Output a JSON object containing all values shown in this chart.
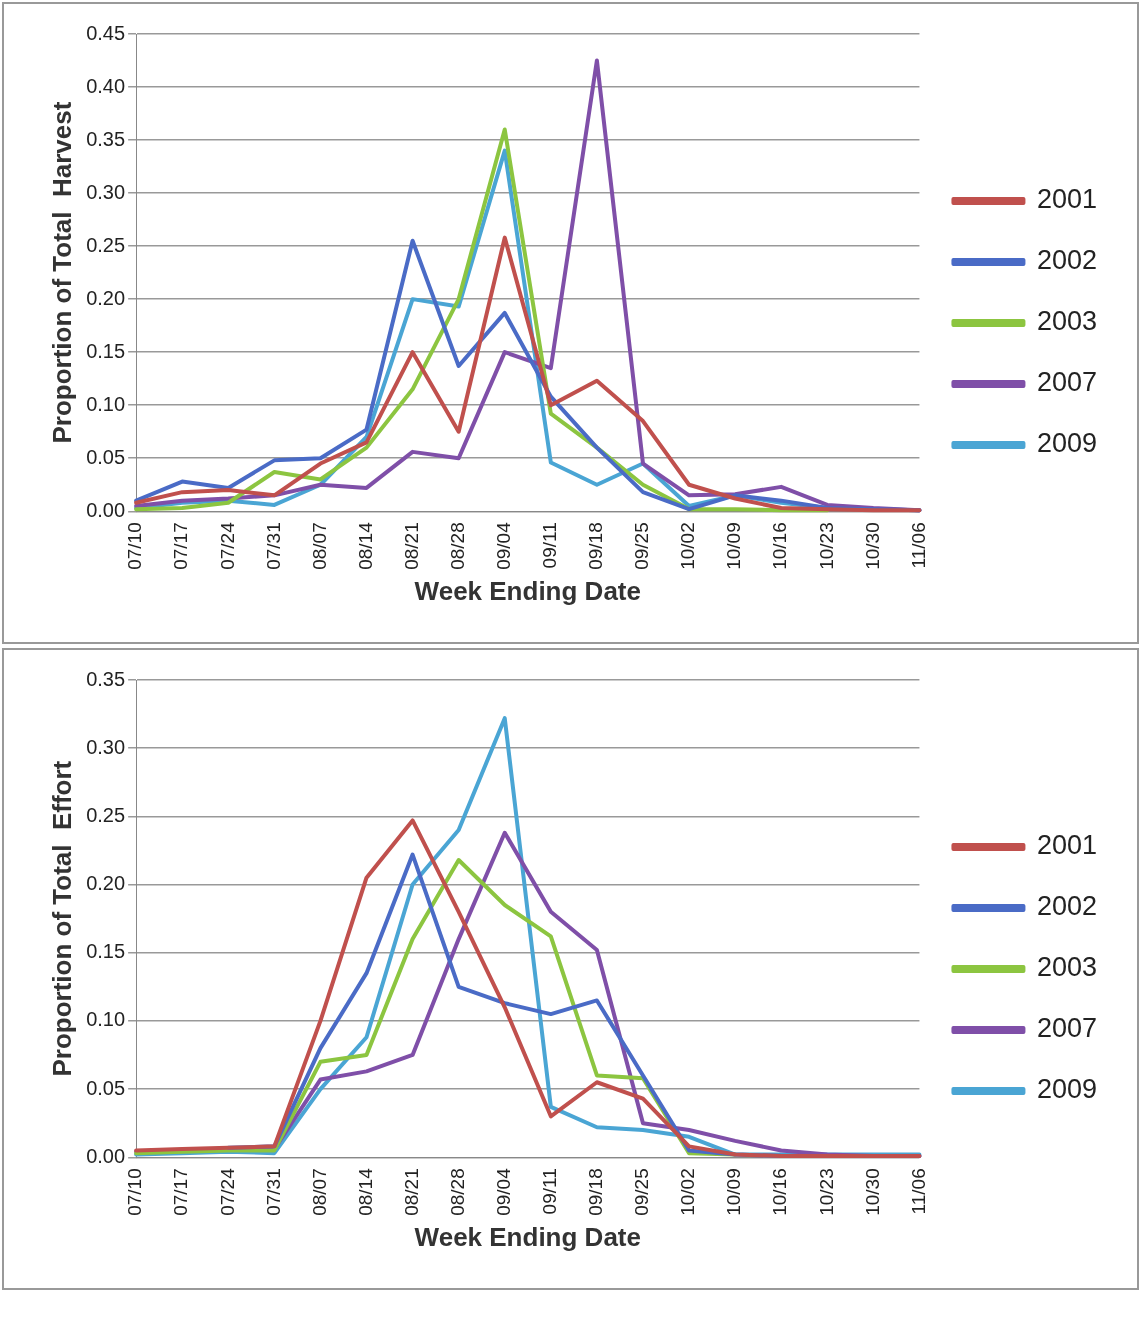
{
  "chart_data": [
    {
      "type": "line",
      "ylabel": "Proportion of Total  Harvest",
      "xlabel": "Week Ending Date",
      "categories": [
        "07/10",
        "07/17",
        "07/24",
        "07/31",
        "08/07",
        "08/14",
        "08/21",
        "08/28",
        "09/04",
        "09/11",
        "09/18",
        "09/25",
        "10/02",
        "10/09",
        "10/16",
        "10/23",
        "10/30",
        "11/06"
      ],
      "series": [
        {
          "name": "2001",
          "color": "#c0504d",
          "values": [
            0.008,
            0.018,
            0.02,
            0.015,
            0.045,
            0.065,
            0.15,
            0.075,
            0.258,
            0.1,
            0.123,
            0.085,
            0.025,
            0.012,
            0.003,
            0.002,
            0.001,
            0.001
          ]
        },
        {
          "name": "2002",
          "color": "#4a6bc6",
          "values": [
            0.01,
            0.028,
            0.022,
            0.048,
            0.05,
            0.077,
            0.255,
            0.137,
            0.187,
            0.108,
            0.06,
            0.018,
            0.002,
            0.015,
            0.01,
            0.003,
            0.002,
            0.001
          ]
        },
        {
          "name": "2003",
          "color": "#8cc540",
          "values": [
            0.002,
            0.003,
            0.008,
            0.037,
            0.03,
            0.06,
            0.115,
            0.2,
            0.36,
            0.092,
            0.06,
            0.025,
            0.002,
            0.002,
            0.001,
            0.001,
            null,
            null
          ]
        },
        {
          "name": "2007",
          "color": "#7f4fa8",
          "values": [
            0.005,
            0.01,
            0.012,
            0.015,
            0.025,
            0.022,
            0.056,
            0.05,
            0.15,
            0.135,
            0.425,
            0.045,
            0.015,
            0.016,
            0.023,
            0.006,
            0.003,
            0.001
          ]
        },
        {
          "name": "2009",
          "color": "#4aa5d4",
          "values": [
            0.003,
            0.008,
            0.01,
            0.006,
            0.025,
            0.07,
            0.2,
            0.193,
            0.34,
            0.046,
            0.025,
            0.045,
            0.005,
            0.015,
            0.008,
            0.003,
            0.002,
            0.001
          ]
        }
      ],
      "ylim": [
        0,
        0.45
      ],
      "yticks": [
        {
          "value": 0,
          "label": "0.00"
        },
        {
          "value": 0.05,
          "label": "0.05"
        },
        {
          "value": 0.1,
          "label": "0.10"
        },
        {
          "value": 0.15,
          "label": "0.15"
        },
        {
          "value": 0.2,
          "label": "0.20"
        },
        {
          "value": 0.25,
          "label": "0.25"
        },
        {
          "value": 0.3,
          "label": "0.30"
        },
        {
          "value": 0.35,
          "label": "0.35"
        },
        {
          "value": 0.4,
          "label": "0.40"
        },
        {
          "value": 0.45,
          "label": "0.45"
        }
      ],
      "grid": "y",
      "legend": "right",
      "marker": "none",
      "line_style": "solid"
    },
    {
      "type": "line",
      "ylabel": "Proportion of Total  Effort",
      "xlabel": "Week Ending Date",
      "categories": [
        "07/10",
        "07/17",
        "07/24",
        "07/31",
        "08/07",
        "08/14",
        "08/21",
        "08/28",
        "09/04",
        "09/11",
        "09/18",
        "09/25",
        "10/02",
        "10/09",
        "10/16",
        "10/23",
        "10/30",
        "11/06"
      ],
      "series": [
        {
          "name": "2001",
          "color": "#c0504d",
          "values": [
            0.005,
            0.006,
            0.007,
            0.008,
            0.1,
            0.205,
            0.247,
            0.18,
            0.11,
            0.03,
            0.055,
            0.043,
            0.008,
            0.002,
            0.001,
            0.001,
            0.001,
            0.001
          ]
        },
        {
          "name": "2002",
          "color": "#4a6bc6",
          "values": [
            null,
            null,
            0.007,
            0.008,
            0.08,
            0.135,
            0.222,
            0.125,
            0.113,
            0.105,
            0.115,
            0.06,
            0.005,
            0.002,
            0.001,
            0.001,
            0.001,
            0.001
          ]
        },
        {
          "name": "2003",
          "color": "#8cc540",
          "values": [
            0.003,
            0.004,
            0.005,
            0.005,
            0.07,
            0.075,
            0.16,
            0.218,
            0.185,
            0.162,
            0.06,
            0.058,
            0.003,
            0.002,
            null,
            null,
            null,
            null
          ]
        },
        {
          "name": "2007",
          "color": "#7f4fa8",
          "values": [
            0.004,
            0.005,
            0.006,
            0.006,
            0.057,
            0.063,
            0.075,
            0.16,
            0.238,
            0.18,
            0.152,
            0.025,
            0.02,
            0.012,
            0.005,
            0.002,
            0.001,
            0.001
          ]
        },
        {
          "name": "2009",
          "color": "#4aa5d4",
          "values": [
            0.002,
            0.003,
            0.004,
            0.003,
            0.05,
            0.088,
            0.2,
            0.24,
            0.322,
            0.037,
            0.022,
            0.02,
            0.015,
            0.002,
            0.002,
            0.002,
            0.002,
            0.002
          ]
        }
      ],
      "ylim": [
        0,
        0.35
      ],
      "yticks": [
        {
          "value": 0,
          "label": "0.00"
        },
        {
          "value": 0.05,
          "label": "0.05"
        },
        {
          "value": 0.1,
          "label": "0.10"
        },
        {
          "value": 0.15,
          "label": "0.15"
        },
        {
          "value": 0.2,
          "label": "0.20"
        },
        {
          "value": 0.25,
          "label": "0.25"
        },
        {
          "value": 0.3,
          "label": "0.30"
        },
        {
          "value": 0.35,
          "label": "0.35"
        }
      ],
      "grid": "y",
      "legend": "right",
      "marker": "none",
      "line_style": "solid"
    }
  ]
}
